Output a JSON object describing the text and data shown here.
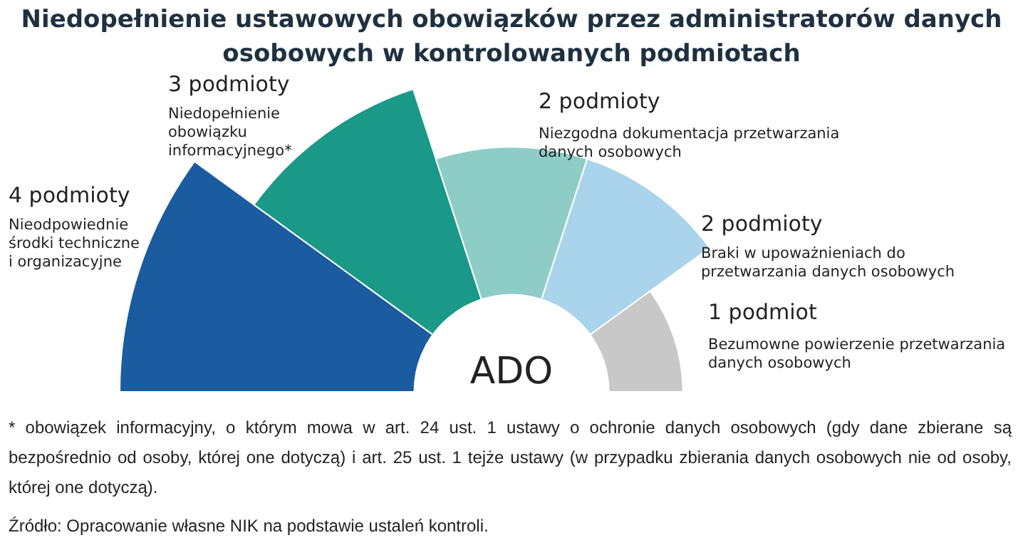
{
  "chart_data": {
    "type": "other",
    "title": "Niedopełnienie ustawowych obowiązków przez administratorów danych osobowych w kontrolowanych podmiotach",
    "categories": [
      "Nieodpowiednie środki techniczne i organizacyjne",
      "Niedopełnienie obowiązku informacyjnego*",
      "Niezgodna dokumentacja przetwarzania danych osobowych",
      "Braki w upoważnieniach do przetwarzania danych osobowych",
      "Bezumowne powierzenie przetwarzania danych osobowych"
    ],
    "values": [
      4,
      3,
      2,
      2,
      1
    ],
    "value_labels": [
      "4 podmioty",
      "3 podmioty",
      "2 podmioty",
      "2 podmioty",
      "1 podmiot"
    ],
    "colors": [
      "#1b5b9f",
      "#1a9988",
      "#8dcdc6",
      "#a9d4ec",
      "#c8c8c8"
    ],
    "annotations": [
      "ADO",
      "* obowiązek informacyjny, o którym mowa w art. 24 ust. 1 ustawy o ochronie danych osobowych (gdy dane zbierane są bezpośrednio od osoby, której one dotyczą) i art. 25 ust. 1 tejże ustawy (w przypadku zbierania danych osobowych nie od osoby, której one dotyczą).",
      "Źródło: Opracowanie własne NIK na podstawie ustaleń kontroli."
    ]
  }
}
